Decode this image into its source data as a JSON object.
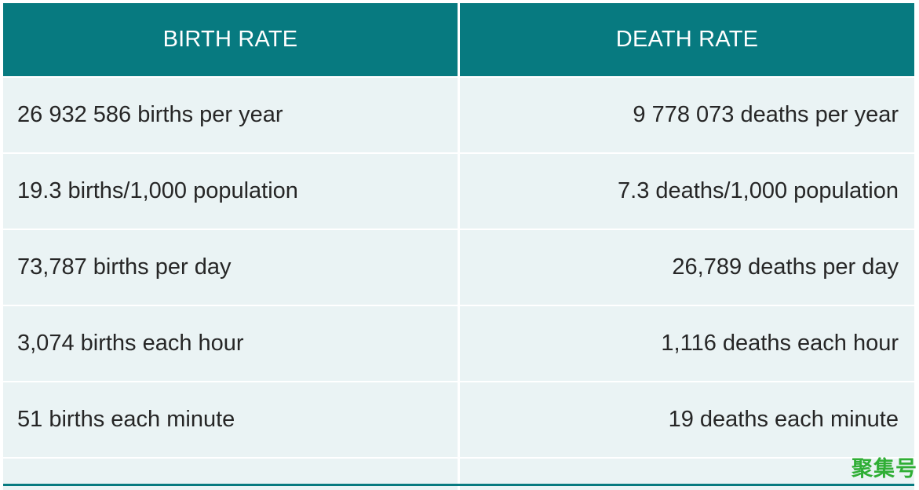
{
  "table": {
    "headers": [
      "BIRTH RATE",
      "DEATH RATE"
    ],
    "rows": [
      [
        "26 932 586 births per year",
        "9 778 073 deaths per year"
      ],
      [
        "19.3 births/1,000 population",
        "7.3 deaths/1,000 population"
      ],
      [
        "73,787 births per day",
        "26,789 deaths per day"
      ],
      [
        "3,074 births each hour",
        "1,116 deaths each hour"
      ],
      [
        "51 births each minute",
        "19 deaths each minute"
      ]
    ]
  },
  "watermark": {
    "text": "聚集号"
  },
  "colors": {
    "header_background": "#077a80",
    "header_text": "#ffffff",
    "row_background": "#eaf3f4",
    "row_text": "#262626",
    "watermark": "#2fae35"
  }
}
